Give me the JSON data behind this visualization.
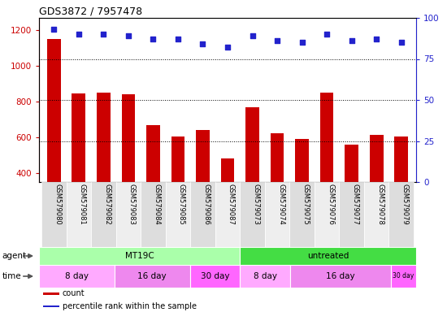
{
  "title": "GDS3872 / 7957478",
  "samples": [
    "GSM579080",
    "GSM579081",
    "GSM579082",
    "GSM579083",
    "GSM579084",
    "GSM579085",
    "GSM579086",
    "GSM579087",
    "GSM579073",
    "GSM579074",
    "GSM579075",
    "GSM579076",
    "GSM579077",
    "GSM579078",
    "GSM579079"
  ],
  "counts": [
    1150,
    845,
    850,
    840,
    670,
    605,
    640,
    480,
    770,
    625,
    590,
    850,
    560,
    615,
    605
  ],
  "percentiles": [
    93,
    90,
    90,
    89,
    87,
    87,
    84,
    82,
    89,
    86,
    85,
    90,
    86,
    87,
    85
  ],
  "ylim_left": [
    350,
    1270
  ],
  "ylim_right": [
    0,
    100
  ],
  "yticks_left": [
    400,
    600,
    800,
    1000,
    1200
  ],
  "yticks_right": [
    0,
    25,
    50,
    75,
    100
  ],
  "bar_color": "#cc0000",
  "dot_color": "#2222cc",
  "agent_groups": [
    {
      "label": "MT19C",
      "start": 0,
      "end": 8,
      "color": "#aaffaa"
    },
    {
      "label": "untreated",
      "start": 8,
      "end": 15,
      "color": "#44dd44"
    }
  ],
  "time_groups": [
    {
      "label": "8 day",
      "start": 0,
      "end": 3,
      "color": "#ffaaff"
    },
    {
      "label": "16 day",
      "start": 3,
      "end": 6,
      "color": "#ee88ee"
    },
    {
      "label": "30 day",
      "start": 6,
      "end": 8,
      "color": "#ff66ff"
    },
    {
      "label": "8 day",
      "start": 8,
      "end": 10,
      "color": "#ffaaff"
    },
    {
      "label": "16 day",
      "start": 10,
      "end": 14,
      "color": "#ee88ee"
    },
    {
      "label": "30 day",
      "start": 14,
      "end": 15,
      "color": "#ff66ff"
    }
  ],
  "legend_items": [
    {
      "label": "count",
      "color": "#cc0000"
    },
    {
      "label": "percentile rank within the sample",
      "color": "#2222cc"
    }
  ],
  "bg_color": "#ffffff",
  "ylabel_left_color": "#cc0000",
  "ylabel_right_color": "#2222cc",
  "grid_ticks": [
    25,
    50,
    75
  ],
  "figsize": [
    5.5,
    3.84
  ],
  "dpi": 100
}
